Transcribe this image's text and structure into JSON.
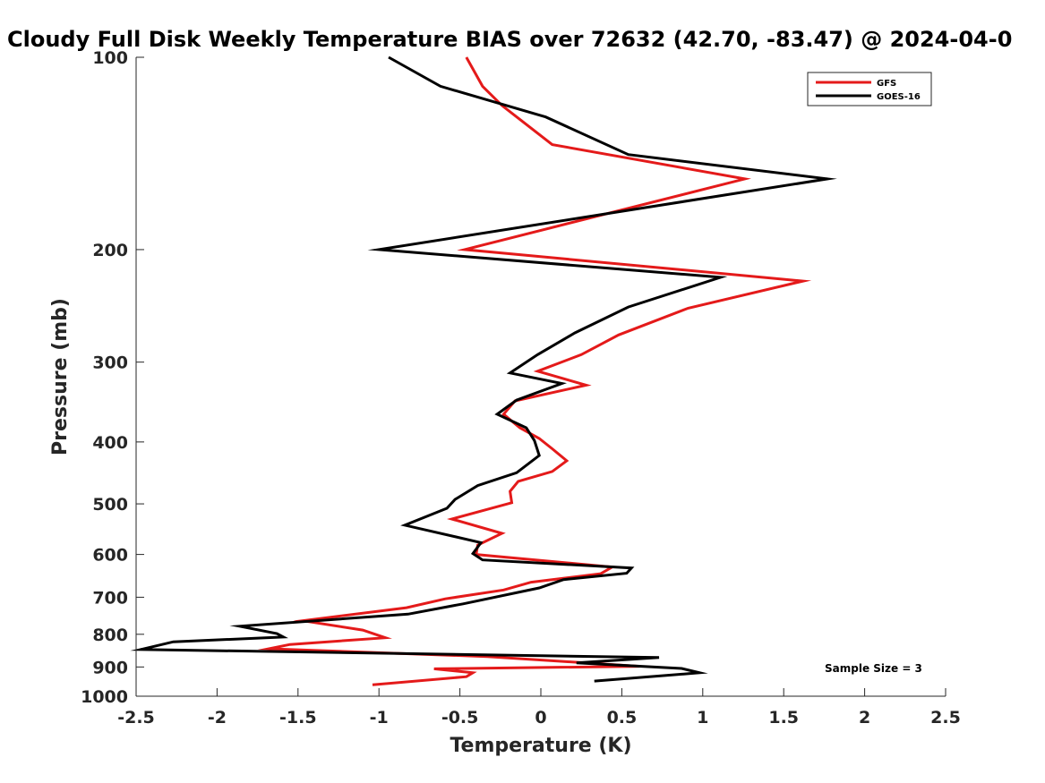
{
  "chart_data": {
    "type": "line",
    "title": "Cloudy Full Disk Weekly Temperature BIAS over 72632 (42.70, -83.47) @ 2024-04-0",
    "xlabel": "Temperature (K)",
    "ylabel": "Pressure (mb)",
    "xlim": [
      -2.5,
      2.5
    ],
    "ylim": [
      1000,
      100
    ],
    "y_scale": "log",
    "y_reversed": true,
    "xticks": [
      "-2.5",
      "-2",
      "-1.5",
      "-1",
      "-0.5",
      "0",
      "0.5",
      "1",
      "1.5",
      "2",
      "2.5"
    ],
    "yticks": [
      "100",
      "200",
      "300",
      "400",
      "500",
      "600",
      "700",
      "800",
      "900",
      "1000"
    ],
    "grid": false,
    "legend": {
      "placement": "top-right",
      "entries": [
        "GFS",
        "GOES-16"
      ]
    },
    "annotation": "Sample Size = 3",
    "colors": {
      "GFS": "#e41a1a",
      "GOES-16": "#000000"
    },
    "series": [
      {
        "name": "GFS",
        "x": [
          -0.46,
          -0.36,
          -0.24,
          0.07,
          1.26,
          -0.47,
          1.62,
          0.91,
          0.48,
          0.25,
          -0.02,
          0.28,
          -0.16,
          -0.23,
          -0.13,
          -0.01,
          0.07,
          0.16,
          0.07,
          -0.14,
          -0.19,
          -0.18,
          -0.55,
          -0.24,
          -0.39,
          -0.4,
          0.44,
          0.37,
          -0.06,
          -0.23,
          -0.59,
          -0.83,
          -1.47,
          -1.1,
          -0.96,
          -1.55,
          -1.68,
          -0.33,
          0.61,
          -0.66,
          -0.42,
          -0.46,
          -1.04
        ],
        "y": [
          100,
          111,
          119,
          137,
          155,
          200,
          224,
          247,
          272,
          292,
          310,
          326,
          345,
          362,
          380,
          395,
          410,
          428,
          445,
          461,
          478,
          498,
          528,
          556,
          580,
          600,
          628,
          643,
          663,
          682,
          704,
          727,
          762,
          788,
          810,
          830,
          843,
          867,
          898,
          906,
          919,
          932,
          960
        ]
      },
      {
        "name": "GOES-16",
        "x": [
          -0.94,
          -0.62,
          0.03,
          0.54,
          1.77,
          -1.0,
          1.11,
          0.54,
          0.21,
          -0.02,
          -0.19,
          0.13,
          -0.15,
          -0.27,
          -0.09,
          -0.04,
          -0.01,
          -0.15,
          -0.39,
          -0.53,
          -0.58,
          -0.84,
          -0.37,
          -0.42,
          -0.36,
          0.56,
          0.53,
          0.14,
          -0.01,
          -0.48,
          -0.82,
          -1.86,
          -1.63,
          -1.59,
          -2.27,
          -2.47,
          0.73,
          0.22,
          0.87,
          0.98,
          0.33
        ],
        "y": [
          100,
          111,
          124,
          142,
          155,
          200,
          221,
          246,
          270,
          292,
          312,
          324,
          344,
          362,
          380,
          398,
          420,
          447,
          468,
          492,
          508,
          540,
          575,
          598,
          612,
          630,
          642,
          657,
          677,
          717,
          744,
          777,
          798,
          808,
          822,
          845,
          870,
          887,
          905,
          919,
          947
        ]
      }
    ]
  }
}
